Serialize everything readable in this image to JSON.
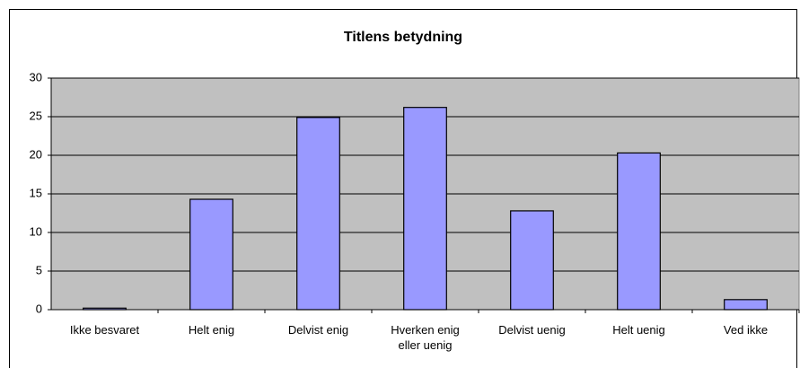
{
  "chart_data": {
    "type": "bar",
    "title": "Titlens betydning",
    "categories": [
      "Ikke besvaret",
      "Helt enig",
      "Delvist enig",
      "Hverken enig eller uenig",
      "Delvist uenig",
      "Helt uenig",
      "Ved ikke"
    ],
    "values": [
      0.2,
      14.3,
      24.9,
      26.2,
      12.8,
      20.3,
      1.3
    ],
    "color": "#9999ff",
    "ylim": [
      0,
      30
    ],
    "yticks": [
      0,
      5,
      10,
      15,
      20,
      25,
      30
    ],
    "grid": true
  }
}
